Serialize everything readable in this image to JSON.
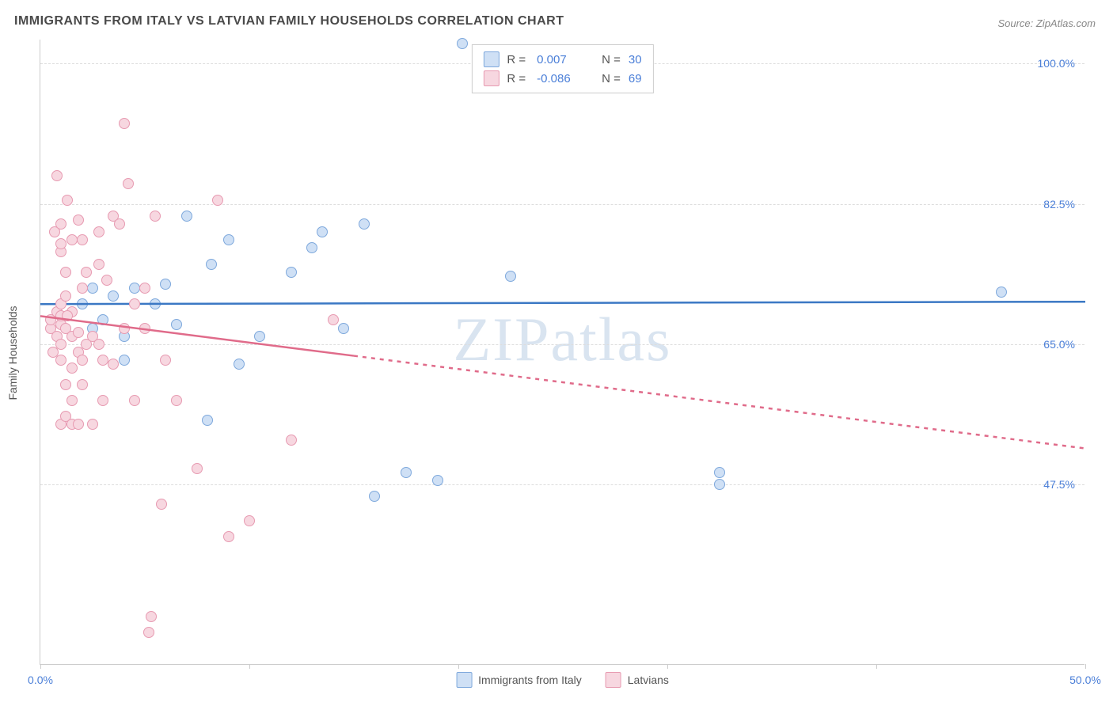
{
  "title": "IMMIGRANTS FROM ITALY VS LATVIAN FAMILY HOUSEHOLDS CORRELATION CHART",
  "source_label": "Source: ZipAtlas.com",
  "watermark": "ZIPatlas",
  "y_axis_label": "Family Households",
  "chart": {
    "type": "scatter",
    "background_color": "#ffffff",
    "grid_color": "#dddddd",
    "axis_color": "#cccccc",
    "xlim": [
      0,
      50
    ],
    "ylim": [
      25,
      103
    ],
    "x_ticks": [
      0,
      10,
      20,
      30,
      40,
      50
    ],
    "x_tick_labels": {
      "0": "0.0%",
      "50": "50.0%"
    },
    "y_ticks": [
      47.5,
      65.0,
      82.5,
      100.0
    ],
    "y_tick_labels": [
      "47.5%",
      "65.0%",
      "82.5%",
      "100.0%"
    ],
    "marker_radius": 7,
    "marker_stroke_width": 1.5,
    "trend_line_width": 2.5,
    "title_fontsize": 16,
    "label_fontsize": 14,
    "tick_label_color": "#4b7fd8"
  },
  "series": [
    {
      "id": "italy",
      "label": "Immigrants from Italy",
      "fill_color": "#cfe0f5",
      "stroke_color": "#7ea8dc",
      "line_color": "#3b78c4",
      "R": "0.007",
      "N": "30",
      "trend": {
        "x1": 0,
        "y1": 70.0,
        "x2": 50,
        "y2": 70.3,
        "dashed_from_x": null
      },
      "points": [
        [
          20.2,
          102.5
        ],
        [
          2.0,
          70.0
        ],
        [
          2.5,
          67.0
        ],
        [
          2.5,
          72.0
        ],
        [
          3.5,
          71.0
        ],
        [
          4.0,
          63.0
        ],
        [
          4.0,
          66.0
        ],
        [
          4.5,
          72.0
        ],
        [
          6.0,
          72.5
        ],
        [
          6.5,
          67.5
        ],
        [
          7.0,
          81.0
        ],
        [
          8.0,
          55.5
        ],
        [
          8.2,
          75.0
        ],
        [
          9.0,
          78.0
        ],
        [
          9.5,
          62.5
        ],
        [
          10.5,
          66.0
        ],
        [
          12.0,
          74.0
        ],
        [
          13.0,
          77.0
        ],
        [
          13.5,
          79.0
        ],
        [
          14.5,
          67.0
        ],
        [
          15.5,
          80.0
        ],
        [
          16.0,
          46.0
        ],
        [
          17.5,
          49.0
        ],
        [
          19.0,
          48.0
        ],
        [
          22.5,
          73.5
        ],
        [
          32.5,
          47.5
        ],
        [
          32.5,
          49.0
        ],
        [
          46.0,
          71.5
        ],
        [
          3.0,
          68.0
        ],
        [
          5.5,
          70.0
        ]
      ]
    },
    {
      "id": "latvians",
      "label": "Latvians",
      "fill_color": "#f7d7e0",
      "stroke_color": "#e79ab1",
      "line_color": "#e06b8a",
      "R": "-0.086",
      "N": "69",
      "trend": {
        "x1": 0,
        "y1": 68.5,
        "x2": 50,
        "y2": 52.0,
        "dashed_from_x": 15
      },
      "points": [
        [
          0.5,
          67.0
        ],
        [
          0.5,
          68.0
        ],
        [
          0.6,
          64.0
        ],
        [
          0.7,
          79.0
        ],
        [
          0.8,
          66.0
        ],
        [
          0.8,
          69.0
        ],
        [
          0.8,
          86.0
        ],
        [
          1.0,
          55.0
        ],
        [
          1.0,
          63.0
        ],
        [
          1.0,
          67.5
        ],
        [
          1.0,
          68.5
        ],
        [
          1.0,
          70.0
        ],
        [
          1.0,
          76.5
        ],
        [
          1.0,
          77.5
        ],
        [
          1.0,
          80.0
        ],
        [
          1.2,
          56.0
        ],
        [
          1.2,
          60.0
        ],
        [
          1.2,
          67.0
        ],
        [
          1.2,
          71.0
        ],
        [
          1.2,
          74.0
        ],
        [
          1.3,
          83.0
        ],
        [
          1.5,
          55.0
        ],
        [
          1.5,
          58.0
        ],
        [
          1.5,
          62.0
        ],
        [
          1.5,
          66.0
        ],
        [
          1.5,
          69.0
        ],
        [
          1.5,
          78.0
        ],
        [
          1.8,
          55.0
        ],
        [
          1.8,
          64.0
        ],
        [
          1.8,
          66.5
        ],
        [
          2.0,
          60.0
        ],
        [
          2.0,
          63.0
        ],
        [
          2.0,
          72.0
        ],
        [
          2.0,
          78.0
        ],
        [
          2.2,
          65.0
        ],
        [
          2.2,
          74.0
        ],
        [
          2.5,
          55.0
        ],
        [
          2.5,
          66.0
        ],
        [
          2.8,
          65.0
        ],
        [
          2.8,
          75.0
        ],
        [
          2.8,
          79.0
        ],
        [
          3.0,
          58.0
        ],
        [
          3.0,
          63.0
        ],
        [
          3.2,
          73.0
        ],
        [
          3.5,
          62.5
        ],
        [
          3.5,
          81.0
        ],
        [
          3.8,
          80.0
        ],
        [
          4.0,
          67.0
        ],
        [
          4.0,
          92.5
        ],
        [
          1.8,
          80.5
        ],
        [
          4.2,
          85.0
        ],
        [
          4.5,
          58.0
        ],
        [
          4.5,
          70.0
        ],
        [
          5.0,
          67.0
        ],
        [
          5.0,
          72.0
        ],
        [
          5.2,
          29.0
        ],
        [
          5.3,
          31.0
        ],
        [
          5.5,
          81.0
        ],
        [
          5.8,
          45.0
        ],
        [
          6.0,
          63.0
        ],
        [
          6.5,
          58.0
        ],
        [
          7.5,
          49.5
        ],
        [
          8.5,
          83.0
        ],
        [
          9.0,
          41.0
        ],
        [
          10.0,
          43.0
        ],
        [
          12.0,
          53.0
        ],
        [
          14.0,
          68.0
        ],
        [
          1.0,
          65.0
        ],
        [
          1.3,
          68.5
        ]
      ]
    }
  ]
}
